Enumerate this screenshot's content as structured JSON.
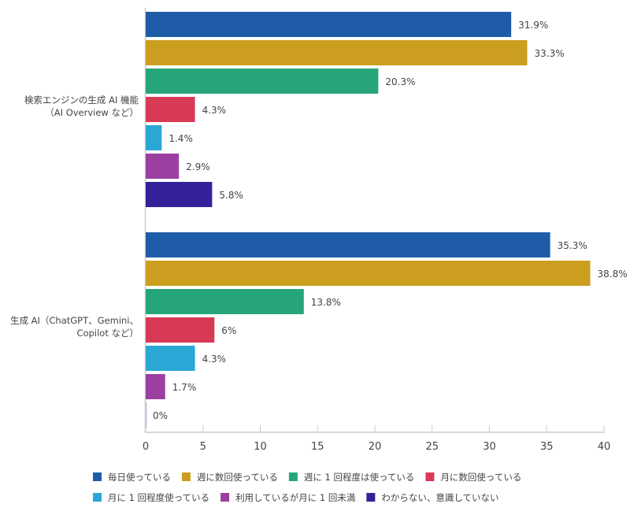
{
  "chart_data": {
    "type": "bar",
    "orientation": "horizontal",
    "categories": [
      [
        "検索エンジンの生成 AI 機能",
        "（AI Overview など）"
      ],
      [
        "生成 AI（ChatGPT、Gemini、",
        "Copilot など）"
      ]
    ],
    "series": [
      {
        "name": "毎日使っている",
        "color": "#1f5ca8",
        "values": [
          31.9,
          35.3
        ],
        "labels": [
          "31.9%",
          "35.3%"
        ]
      },
      {
        "name": "週に数回使っている",
        "color": "#cc9e20",
        "values": [
          33.3,
          38.8
        ],
        "labels": [
          "33.3%",
          "38.8%"
        ]
      },
      {
        "name": "週に 1 回程度は使っている",
        "color": "#27a57a",
        "values": [
          20.3,
          13.8
        ],
        "labels": [
          "20.3%",
          "13.8%"
        ]
      },
      {
        "name": "月に数回使っている",
        "color": "#d83a56",
        "values": [
          4.3,
          6
        ],
        "labels": [
          "4.3%",
          "6%"
        ]
      },
      {
        "name": "月に 1 回程度使っている",
        "color": "#2ba7d6",
        "values": [
          1.4,
          4.3
        ],
        "labels": [
          "1.4%",
          "4.3%"
        ]
      },
      {
        "name": "利用しているが月に 1 回未満",
        "color": "#9b40a1",
        "values": [
          2.9,
          1.7
        ],
        "labels": [
          "2.9%",
          "1.7%"
        ]
      },
      {
        "name": "わからない、意識していない",
        "color": "#35209b",
        "values": [
          5.8,
          0
        ],
        "labels": [
          "5.8%",
          "0%"
        ]
      }
    ],
    "xlim": [
      0,
      40
    ],
    "xticks": [
      "0",
      "5",
      "10",
      "15",
      "20",
      "25",
      "30",
      "35",
      "40"
    ],
    "legend_position": "bottom",
    "grid": false
  }
}
